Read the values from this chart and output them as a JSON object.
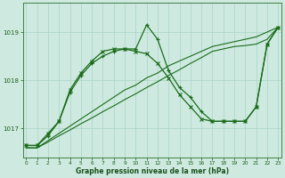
{
  "xlabel": "Graphe pression niveau de la mer (hPa)",
  "x": [
    0,
    1,
    2,
    3,
    4,
    5,
    6,
    7,
    8,
    9,
    10,
    11,
    12,
    13,
    14,
    15,
    16,
    17,
    18,
    19,
    20,
    21,
    22,
    23
  ],
  "series_line1": [
    1016.6,
    1016.6,
    1016.75,
    1016.9,
    1017.05,
    1017.2,
    1017.35,
    1017.5,
    1017.65,
    1017.8,
    1017.9,
    1018.05,
    1018.15,
    1018.3,
    1018.4,
    1018.5,
    1018.6,
    1018.7,
    1018.75,
    1018.8,
    1018.85,
    1018.9,
    1019.0,
    1019.1
  ],
  "series_line2": [
    1016.6,
    1016.6,
    1016.72,
    1016.85,
    1016.97,
    1017.1,
    1017.22,
    1017.35,
    1017.47,
    1017.6,
    1017.72,
    1017.85,
    1017.97,
    1018.1,
    1018.22,
    1018.35,
    1018.47,
    1018.6,
    1018.65,
    1018.7,
    1018.72,
    1018.75,
    1018.85,
    1019.1
  ],
  "series_marker1": [
    1016.65,
    1016.65,
    1016.85,
    1017.15,
    1017.75,
    1018.1,
    1018.35,
    1018.5,
    1018.6,
    1018.65,
    1018.65,
    1019.15,
    1018.85,
    1018.2,
    1017.85,
    1017.65,
    1017.35,
    1017.15,
    1017.15,
    1017.15,
    1017.15,
    1017.45,
    1018.75,
    1019.1
  ],
  "series_marker2": [
    1016.65,
    1016.65,
    1016.9,
    1017.15,
    1017.8,
    1018.15,
    1018.4,
    1018.6,
    1018.65,
    1018.65,
    1018.6,
    1018.55,
    1018.35,
    1018.05,
    1017.7,
    1017.45,
    1017.2,
    1017.15,
    1017.15,
    1017.15,
    1017.15,
    1017.45,
    1018.75,
    1019.1
  ],
  "line_color": "#1a6b1a",
  "marker_color": "#1a6b1a",
  "bg_color": "#ceeae0",
  "grid_color": "#a8d4c4",
  "axis_color": "#2d6e2d",
  "tick_label_color": "#1a5c1a",
  "xlabel_color": "#1a4f1a",
  "ylim": [
    1016.4,
    1019.6
  ],
  "yticks": [
    1017,
    1018,
    1019
  ],
  "xticks": [
    0,
    1,
    2,
    3,
    4,
    5,
    6,
    7,
    8,
    9,
    10,
    11,
    12,
    13,
    14,
    15,
    16,
    17,
    18,
    19,
    20,
    21,
    22,
    23
  ]
}
